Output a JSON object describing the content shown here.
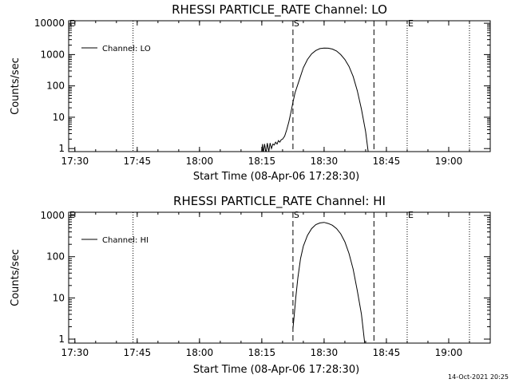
{
  "footer": {
    "timestamp": "14-Oct-2021 20:25"
  },
  "chart_data": [
    {
      "type": "line",
      "title": "RHESSI PARTICLE_RATE Channel: LO",
      "xlabel": "Start Time (08-Apr-06 17:28:30)",
      "ylabel": "Counts/sec",
      "yscale": "log",
      "xlim": [
        "17:28:30",
        "19:10:00"
      ],
      "ylim": [
        0.8,
        12000
      ],
      "x_ticks": [
        "17:30",
        "17:45",
        "18:00",
        "18:15",
        "18:30",
        "18:45",
        "19:00"
      ],
      "y_ticks": [
        "1",
        "10",
        "100",
        "1000",
        "10000"
      ],
      "legend": {
        "position": "top-left",
        "entries": [
          "Channel: LO"
        ]
      },
      "markers": [
        {
          "label": "E",
          "time": "17:28:30",
          "style": "dotted"
        },
        {
          "label": "",
          "time": "17:44:00",
          "style": "dotted"
        },
        {
          "label": "S",
          "time": "18:22:30",
          "style": "dashed"
        },
        {
          "label": "",
          "time": "18:42:00",
          "style": "dashed"
        },
        {
          "label": "E",
          "time": "18:50:00",
          "style": "dotted"
        },
        {
          "label": "",
          "time": "19:05:00",
          "style": "dotted"
        }
      ],
      "series": [
        {
          "name": "Channel: LO",
          "points": [
            [
              "18:15:00",
              0.7
            ],
            [
              "18:15:10",
              1.4
            ],
            [
              "18:15:20",
              0.7
            ],
            [
              "18:15:40",
              1.4
            ],
            [
              "18:16:00",
              0.7
            ],
            [
              "18:16:20",
              1.5
            ],
            [
              "18:16:40",
              0.8
            ],
            [
              "18:17:00",
              1.5
            ],
            [
              "18:17:20",
              1.0
            ],
            [
              "18:17:40",
              1.4
            ],
            [
              "18:18:00",
              1.3
            ],
            [
              "18:18:20",
              1.6
            ],
            [
              "18:18:40",
              1.4
            ],
            [
              "18:19:00",
              1.8
            ],
            [
              "18:19:20",
              1.6
            ],
            [
              "18:19:40",
              1.9
            ],
            [
              "18:20:00",
              2.0
            ],
            [
              "18:20:30",
              2.5
            ],
            [
              "18:21:00",
              4.0
            ],
            [
              "18:21:30",
              7.0
            ],
            [
              "18:22:00",
              14
            ],
            [
              "18:22:30",
              30
            ],
            [
              "18:23:00",
              60
            ],
            [
              "18:24:00",
              150
            ],
            [
              "18:25:00",
              380
            ],
            [
              "18:26:00",
              700
            ],
            [
              "18:27:00",
              1050
            ],
            [
              "18:28:00",
              1350
            ],
            [
              "18:29:00",
              1550
            ],
            [
              "18:30:00",
              1620
            ],
            [
              "18:31:00",
              1600
            ],
            [
              "18:32:00",
              1500
            ],
            [
              "18:33:00",
              1300
            ],
            [
              "18:34:00",
              1000
            ],
            [
              "18:35:00",
              700
            ],
            [
              "18:36:00",
              420
            ],
            [
              "18:37:00",
              200
            ],
            [
              "18:38:00",
              70
            ],
            [
              "18:39:00",
              18
            ],
            [
              "18:40:00",
              3.5
            ],
            [
              "18:40:40",
              0.7
            ]
          ]
        }
      ]
    },
    {
      "type": "line",
      "title": "RHESSI PARTICLE_RATE Channel: HI",
      "xlabel": "Start Time (08-Apr-06 17:28:30)",
      "ylabel": "Counts/sec",
      "yscale": "log",
      "xlim": [
        "17:28:30",
        "19:10:00"
      ],
      "ylim": [
        0.8,
        1200
      ],
      "x_ticks": [
        "17:30",
        "17:45",
        "18:00",
        "18:15",
        "18:30",
        "18:45",
        "19:00"
      ],
      "y_ticks": [
        "1",
        "10",
        "100",
        "1000"
      ],
      "legend": {
        "position": "top-left",
        "entries": [
          "Channel: HI"
        ]
      },
      "markers": [
        {
          "label": "E",
          "time": "17:28:30",
          "style": "dotted"
        },
        {
          "label": "",
          "time": "17:44:00",
          "style": "dotted"
        },
        {
          "label": "S",
          "time": "18:22:30",
          "style": "dashed"
        },
        {
          "label": "",
          "time": "18:42:00",
          "style": "dashed"
        },
        {
          "label": "E",
          "time": "18:50:00",
          "style": "dotted"
        },
        {
          "label": "",
          "time": "19:05:00",
          "style": "dotted"
        }
      ],
      "series": [
        {
          "name": "Channel: HI",
          "points": [
            [
              "18:22:30",
              1.8
            ],
            [
              "18:22:50",
              4.0
            ],
            [
              "18:23:10",
              10
            ],
            [
              "18:23:40",
              30
            ],
            [
              "18:24:20",
              90
            ],
            [
              "18:25:00",
              180
            ],
            [
              "18:26:00",
              330
            ],
            [
              "18:27:00",
              480
            ],
            [
              "18:28:00",
              600
            ],
            [
              "18:29:00",
              660
            ],
            [
              "18:30:00",
              680
            ],
            [
              "18:31:00",
              640
            ],
            [
              "18:32:00",
              580
            ],
            [
              "18:33:00",
              480
            ],
            [
              "18:34:00",
              360
            ],
            [
              "18:35:00",
              230
            ],
            [
              "18:36:00",
              120
            ],
            [
              "18:37:00",
              50
            ],
            [
              "18:38:00",
              15
            ],
            [
              "18:39:00",
              4
            ],
            [
              "18:39:50",
              0.7
            ]
          ]
        }
      ]
    }
  ]
}
